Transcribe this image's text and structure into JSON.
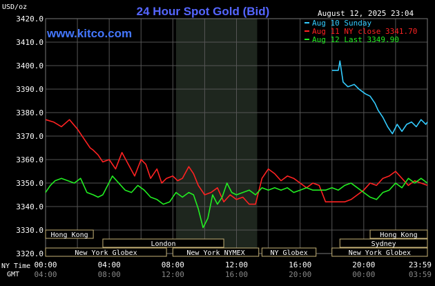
{
  "chart_data": {
    "type": "line",
    "title": "24 Hour Spot Gold (Bid)",
    "brand": "www.kitco.com",
    "timestamp": "August 12, 2025 23:04",
    "ylabel": "USD/oz",
    "ylim": [
      3320,
      3420
    ],
    "yticks": [
      "3420.0",
      "3410.0",
      "3400.0",
      "3390.0",
      "3380.0",
      "3370.0",
      "3360.0",
      "3350.0",
      "3340.0",
      "3330.0",
      "3320.0"
    ],
    "xlim": [
      0,
      24
    ],
    "grid": true,
    "legend_position": "top-right",
    "x_row1_label": "NY Time",
    "x_row2_label": "GMT",
    "x_ticks_ny": [
      "00:00",
      "04:00",
      "08:00",
      "12:00",
      "16:00",
      "20:00",
      "23:59"
    ],
    "x_ticks_gmt": [
      "04:00",
      "08:00",
      "12:00",
      "16:00",
      "20:00",
      "00:00",
      "03:59"
    ],
    "legend": [
      {
        "label": "Aug 10 Sunday",
        "color": "#33ccff"
      },
      {
        "label": "Aug 11 NY close 3341.70",
        "color": "#ff2222"
      },
      {
        "label": "Aug 12 Last 3349.90",
        "color": "#22ee22"
      }
    ],
    "sessions": [
      {
        "label": "Hong Kong",
        "row": 1,
        "start": 0,
        "end": 3.0
      },
      {
        "label": "London",
        "row": 2,
        "start": 3.6,
        "end": 11.2
      },
      {
        "label": "New York Globex",
        "row": 3,
        "start": 0,
        "end": 7.6
      },
      {
        "label": "New York NYMEX",
        "row": 3,
        "start": 8.0,
        "end": 13.4
      },
      {
        "label": "NY Globex",
        "row": 3,
        "start": 13.6,
        "end": 17.0
      },
      {
        "label": "Hong Kong",
        "row": 1,
        "start": 20.4,
        "end": 24
      },
      {
        "label": "Sydney",
        "row": 2,
        "start": 18.5,
        "end": 24
      },
      {
        "label": "New York Globex",
        "row": 3,
        "start": 18.0,
        "end": 24
      }
    ],
    "nymex_hours": [
      8.2,
      13.3
    ],
    "series": [
      {
        "name": "Aug 10 Sunday",
        "color": "#33ccff",
        "x": [
          18.0,
          18.4,
          18.5,
          18.7,
          19.0,
          19.4,
          19.7,
          20.1,
          20.4,
          20.7,
          20.9,
          21.2,
          21.5,
          21.8,
          22.1,
          22.4,
          22.7,
          23.0,
          23.3,
          23.6,
          23.9,
          24.0
        ],
        "y": [
          3398,
          3398,
          3402,
          3393,
          3391,
          3392,
          3390,
          3388,
          3387,
          3384,
          3381,
          3378,
          3374,
          3371,
          3375,
          3372,
          3375,
          3376,
          3374,
          3377,
          3375,
          3376
        ]
      },
      {
        "name": "Aug 11 NY close 3341.70",
        "color": "#ff2222",
        "x": [
          0,
          0.5,
          1.0,
          1.5,
          2.0,
          2.5,
          2.8,
          3.0,
          3.3,
          3.6,
          4.0,
          4.4,
          4.8,
          5.2,
          5.6,
          6.0,
          6.3,
          6.6,
          7.0,
          7.3,
          7.6,
          8.0,
          8.3,
          8.6,
          9.0,
          9.3,
          9.6,
          10.0,
          10.4,
          10.8,
          11.2,
          11.6,
          12.0,
          12.4,
          12.8,
          13.2,
          13.6,
          14.0,
          14.4,
          14.8,
          15.2,
          15.6,
          16.0,
          16.4,
          16.8,
          17.2,
          17.6,
          18.0,
          18.4,
          18.8,
          19.2,
          19.6,
          20.0,
          20.4,
          20.8,
          21.2,
          21.6,
          22.0,
          22.4,
          22.8,
          23.2,
          23.6,
          24.0
        ],
        "y": [
          3377,
          3376,
          3374,
          3377,
          3373,
          3368,
          3365,
          3364,
          3362,
          3359,
          3360,
          3356,
          3363,
          3358,
          3353,
          3360,
          3358,
          3352,
          3356,
          3350,
          3352,
          3353,
          3351,
          3352,
          3357,
          3354,
          3349,
          3345,
          3346,
          3348,
          3342,
          3345,
          3343,
          3344,
          3341,
          3341,
          3352,
          3356,
          3354,
          3351,
          3353,
          3352,
          3350,
          3348,
          3350,
          3349,
          3342,
          3342,
          3342,
          3342,
          3343,
          3345,
          3347,
          3350,
          3349,
          3352,
          3353,
          3355,
          3352,
          3349,
          3351,
          3350,
          3349
        ]
      },
      {
        "name": "Aug 12 Last 3349.90",
        "color": "#22ee22",
        "x": [
          0,
          0.3,
          0.6,
          1.0,
          1.4,
          1.8,
          2.2,
          2.6,
          3.0,
          3.3,
          3.6,
          3.9,
          4.2,
          4.6,
          5.0,
          5.4,
          5.8,
          6.2,
          6.6,
          7.0,
          7.4,
          7.8,
          8.2,
          8.6,
          9.0,
          9.3,
          9.6,
          9.9,
          10.2,
          10.5,
          10.8,
          11.1,
          11.4,
          11.7,
          12.0,
          12.4,
          12.8,
          13.2,
          13.6,
          14.0,
          14.4,
          14.8,
          15.2,
          15.6,
          16.0,
          16.4,
          16.8,
          17.2,
          17.6,
          18.0,
          18.4,
          18.8,
          19.2,
          19.6,
          20.0,
          20.4,
          20.8,
          21.2,
          21.6,
          22.0,
          22.4,
          22.8,
          23.2,
          23.6,
          24.0
        ],
        "y": [
          3346,
          3349,
          3351,
          3352,
          3351,
          3350,
          3352,
          3346,
          3345,
          3344,
          3345,
          3349,
          3353,
          3350,
          3347,
          3346,
          3349,
          3347,
          3344,
          3343,
          3341,
          3342,
          3346,
          3344,
          3346,
          3345,
          3339,
          3331,
          3335,
          3345,
          3341,
          3344,
          3350,
          3346,
          3345,
          3346,
          3347,
          3345,
          3348,
          3347,
          3348,
          3347,
          3348,
          3346,
          3347,
          3348,
          3347,
          3347,
          3347,
          3348,
          3347,
          3349,
          3350,
          3348,
          3346,
          3344,
          3343,
          3346,
          3347,
          3350,
          3348,
          3352,
          3350,
          3352,
          3350
        ]
      }
    ]
  }
}
